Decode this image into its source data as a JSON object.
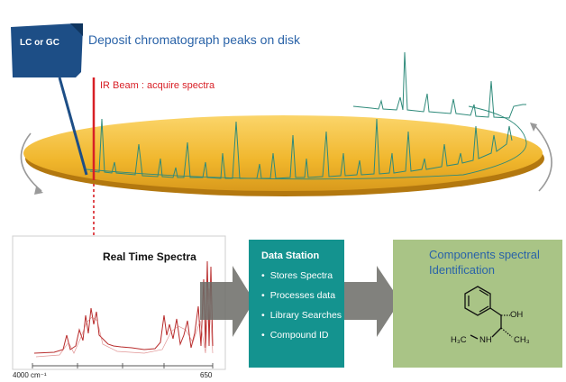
{
  "source_label": "LC or GC",
  "deposit_title": "Deposit chromatograph peaks on disk",
  "ir_beam_label": "IR Beam : acquire spectra",
  "real_time_title": "Real Time Spectra",
  "spectrum_axis": {
    "left_label": "4000 cm⁻¹",
    "right_label": "650"
  },
  "data_station": {
    "title": "Data Station",
    "items": [
      "Stores Spectra",
      "Processes data",
      "Library Searches",
      "Compound ID"
    ]
  },
  "components": {
    "title_line1": "Components spectral",
    "title_line2": "Identification",
    "oh_label": "OH",
    "h3c_label": "H₃C",
    "nh_label": "NH",
    "ch3_label": "CH₃"
  },
  "colors": {
    "disk": "#f0b62c",
    "trace": "#2e8a7a",
    "spectrum": "#b82c2c",
    "data_station": "#14938f",
    "components_box": "#a9c486",
    "arrow": "#6b6b66",
    "title_blue": "#2a63a8",
    "ir_red": "#d81f26",
    "source_box": "#1d4e86"
  }
}
